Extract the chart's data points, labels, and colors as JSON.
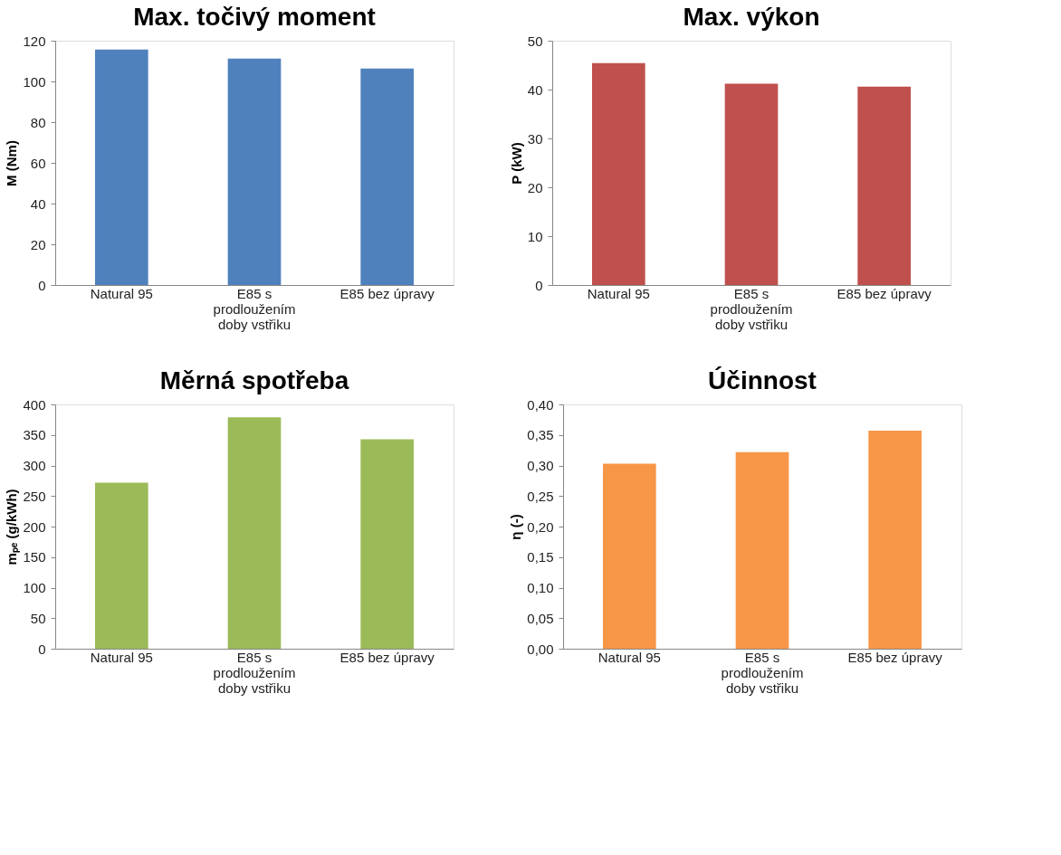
{
  "chart_data": [
    {
      "type": "bar",
      "title": "Max. točivý moment",
      "ylabel": "M (Nm)",
      "categories": [
        "Natural 95",
        "E85 s prodloužením doby vstřiku",
        "E85 bez úpravy"
      ],
      "values": [
        115.7,
        111.2,
        106.3
      ],
      "color": "#4f81bd",
      "ylim": [
        0,
        120
      ],
      "yticks": [
        0,
        20,
        40,
        60,
        80,
        100,
        120
      ],
      "grid": false
    },
    {
      "type": "bar",
      "title": "Max. výkon",
      "ylabel": "P (kW)",
      "categories": [
        "Natural 95",
        "E85 s prodloužením doby vstřiku",
        "E85 bez úpravy"
      ],
      "values": [
        45.4,
        41.2,
        40.6
      ],
      "color": "#c0504d",
      "ylim": [
        0,
        50
      ],
      "yticks": [
        0,
        10,
        20,
        30,
        40,
        50
      ],
      "grid": false
    },
    {
      "type": "bar",
      "title": "Měrná spotřeba",
      "ylabel": "mₚₑ (g/kWh)",
      "categories": [
        "Natural 95",
        "E85 s prodloužením doby vstřiku",
        "E85 bez úpravy"
      ],
      "values": [
        272,
        379,
        343
      ],
      "color": "#9bbb59",
      "ylim": [
        0,
        400
      ],
      "yticks": [
        0,
        50,
        100,
        150,
        200,
        250,
        300,
        350,
        400
      ],
      "grid": false
    },
    {
      "type": "bar",
      "title": "Účinnost",
      "ylabel": "η (-)",
      "categories": [
        "Natural 95",
        "E85 s prodloužením doby vstřiku",
        "E85 bez úpravy"
      ],
      "values": [
        0.303,
        0.322,
        0.357
      ],
      "color": "#f79646",
      "ylim": [
        0,
        0.4
      ],
      "yticks": [
        {
          "value": 0,
          "label": "0,00"
        },
        {
          "value": 0.05,
          "label": "0,05"
        },
        {
          "value": 0.1,
          "label": "0,10"
        },
        {
          "value": 0.15,
          "label": "0,15"
        },
        {
          "value": 0.2,
          "label": "0,20"
        },
        {
          "value": 0.25,
          "label": "0,25"
        },
        {
          "value": 0.3,
          "label": "0,30"
        },
        {
          "value": 0.35,
          "label": "0,35"
        },
        {
          "value": 0.4,
          "label": "0,40"
        }
      ],
      "grid": false
    }
  ]
}
